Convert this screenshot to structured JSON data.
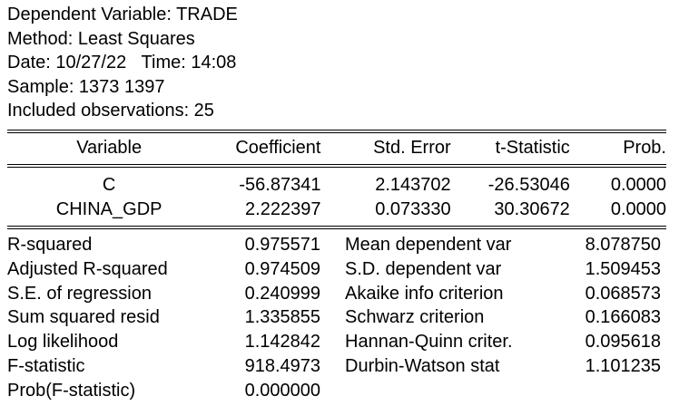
{
  "header": {
    "dependent_variable": "Dependent Variable: TRADE",
    "method": "Method: Least Squares",
    "date_time": "Date: 10/27/22   Time: 14:08",
    "sample": "Sample: 1373 1397",
    "included_observations": "Included observations: 25"
  },
  "coef_table": {
    "columns": [
      "Variable",
      "Coefficient",
      "Std. Error",
      "t-Statistic",
      "Prob."
    ],
    "rows": [
      {
        "variable": "C",
        "coefficient": "-56.87341",
        "std_error": "2.143702",
        "t_statistic": "-26.53046",
        "prob": "0.0000"
      },
      {
        "variable": "CHINA_GDP",
        "coefficient": "2.222397",
        "std_error": "0.073330",
        "t_statistic": "30.30672",
        "prob": "0.0000"
      }
    ]
  },
  "stats": [
    {
      "label1": "R-squared",
      "value1": "0.975571",
      "label2": "Mean dependent var",
      "value2": "8.078750"
    },
    {
      "label1": "Adjusted R-squared",
      "value1": "0.974509",
      "label2": "S.D. dependent var",
      "value2": "1.509453"
    },
    {
      "label1": "S.E. of regression",
      "value1": "0.240999",
      "label2": "Akaike info criterion",
      "value2": "0.068573"
    },
    {
      "label1": "Sum squared resid",
      "value1": "1.335855",
      "label2": "Schwarz criterion",
      "value2": "0.166083"
    },
    {
      "label1": "Log likelihood",
      "value1": "1.142842",
      "label2": "Hannan-Quinn criter.",
      "value2": "0.095618"
    },
    {
      "label1": "F-statistic",
      "value1": "918.4973",
      "label2": "Durbin-Watson stat",
      "value2": "1.101235"
    },
    {
      "label1": "Prob(F-statistic)",
      "value1": "0.000000",
      "label2": "",
      "value2": ""
    }
  ]
}
